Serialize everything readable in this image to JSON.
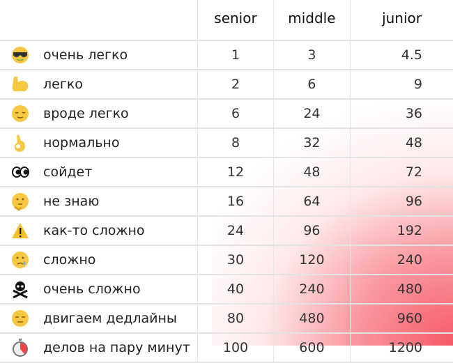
{
  "columns": [
    "senior",
    "middle",
    "junior"
  ],
  "rows": [
    {
      "icon": "sunglasses-face-icon",
      "label": "очень легко",
      "values": [
        "1",
        "3",
        "4.5"
      ]
    },
    {
      "icon": "flexed-biceps-icon",
      "label": "легко",
      "values": [
        "2",
        "6",
        "9"
      ]
    },
    {
      "icon": "relieved-face-icon",
      "label": "вроде легко",
      "values": [
        "6",
        "24",
        "36"
      ]
    },
    {
      "icon": "ok-hand-icon",
      "label": "нормально",
      "values": [
        "8",
        "32",
        "48"
      ]
    },
    {
      "icon": "eyes-icon",
      "label": "сойдет",
      "values": [
        "12",
        "48",
        "72"
      ]
    },
    {
      "icon": "thinking-face-icon",
      "label": "не знаю",
      "values": [
        "16",
        "64",
        "96"
      ]
    },
    {
      "icon": "warning-icon",
      "label": "как-то сложно",
      "values": [
        "24",
        "96",
        "192"
      ]
    },
    {
      "icon": "crying-face-icon",
      "label": "сложно",
      "values": [
        "30",
        "120",
        "240"
      ]
    },
    {
      "icon": "skull-crossbones-icon",
      "label": "очень сложно",
      "values": [
        "40",
        "240",
        "480"
      ]
    },
    {
      "icon": "expressionless-face-icon",
      "label": "двигаем дедлайны",
      "values": [
        "80",
        "480",
        "960"
      ]
    },
    {
      "icon": "stopwatch-icon",
      "label": "делов на пару минут",
      "values": [
        "100",
        "600",
        "1200"
      ]
    }
  ],
  "colors": {
    "gradient": "#f5505f",
    "grid": "#e3e3e3",
    "emoji_yellow": "#f7c843"
  }
}
